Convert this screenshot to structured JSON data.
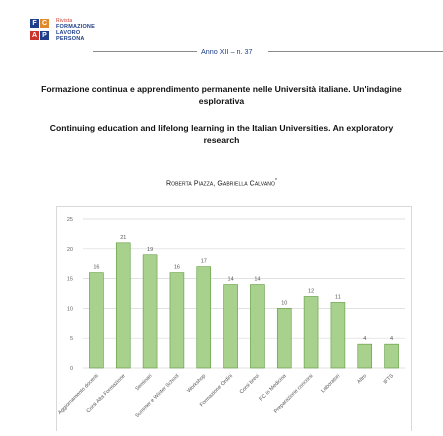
{
  "journal": {
    "logo_tiles": [
      "F",
      "C",
      "A",
      "P"
    ],
    "logo_lines": [
      "Rivista",
      "FORMAZIONE",
      "LAVORO",
      "PERSONA"
    ],
    "issue": "Anno XII – n. 37"
  },
  "paper": {
    "title_it": "Formazione continua e apprendimento permanente nelle Università italiane. Un'indagine esplorativa",
    "title_en": "Continuing education and lifelong learning in the Italian Universities. An exploratory research",
    "authors": "Roberta Piazza, Gabriella Calvano",
    "author_mark": "*"
  },
  "chart_data": {
    "type": "bar",
    "title": "",
    "xlabel": "",
    "ylabel": "",
    "ylim": [
      0,
      25
    ],
    "yticks": [
      0,
      5,
      10,
      15,
      20,
      25
    ],
    "grid": true,
    "categories": [
      "Aggiornamento docenti",
      "Corsi Alta Formazione",
      "Seminari",
      "Summer e Winter School",
      "Workshop",
      "Formazione Ordini",
      "Corsi brevi",
      "FC in Medicina",
      "Preparazione concorsi",
      "Laboratori",
      "Altro",
      "IFTS"
    ],
    "values": [
      16,
      21,
      19,
      16,
      17,
      14,
      14,
      10,
      12,
      11,
      4,
      4
    ],
    "colors": {
      "bar_fill": "#a9d18e",
      "bar_stroke": "#5a9a3a",
      "grid": "#d9d9d9"
    }
  }
}
